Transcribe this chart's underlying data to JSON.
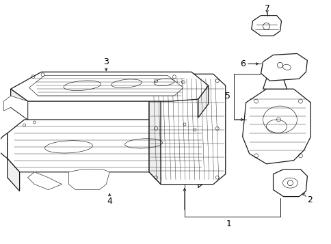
{
  "bg_color": "#ffffff",
  "line_color": "#1a1a1a",
  "figsize": [
    4.85,
    3.57
  ],
  "dpi": 100,
  "lw_main": 0.9,
  "lw_detail": 0.45,
  "lw_thin": 0.3
}
